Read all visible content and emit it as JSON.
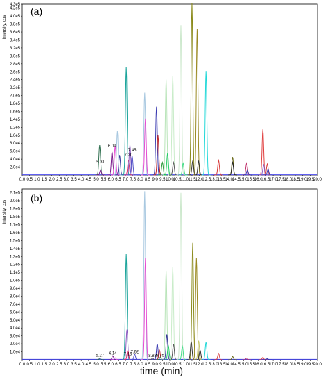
{
  "chart_data": [
    {
      "type": "line",
      "panel_label": "(a)",
      "ylabel": "Intensity, cps",
      "xlim": [
        0.0,
        20.0
      ],
      "ylim": [
        0,
        430000
      ],
      "x_ticks": [
        "0.0",
        "0.5",
        "1.0",
        "1.5",
        "2.0",
        "2.5",
        "3.0",
        "3.5",
        "4.0",
        "4.5",
        "5.0",
        "5.5",
        "6.0",
        "6.5",
        "7.0",
        "7.5",
        "8.0",
        "8.5",
        "9.0",
        "9.5",
        "10.0",
        "10.5",
        "11.0",
        "11.5",
        "12.0",
        "12.5",
        "13.0",
        "13.5",
        "14.0",
        "14.5",
        "15.0",
        "15.5",
        "16.0",
        "16.5",
        "17.0",
        "17.5",
        "18.0",
        "18.5",
        "19.0",
        "19.5",
        "20.0"
      ],
      "y_ticks": [
        "2.0e4",
        "4.0e4",
        "6.0e4",
        "8.0e4",
        "1.0e5",
        "1.2e5",
        "1.4e5",
        "1.6e5",
        "1.8e5",
        "2.0e5",
        "2.2e5",
        "2.4e5",
        "2.6e5",
        "2.8e5",
        "3.0e5",
        "3.2e5",
        "3.4e5",
        "3.6e5",
        "3.8e5",
        "4.0e5",
        "4.2e5",
        "4.3e5"
      ],
      "y_tick_values": [
        20000,
        40000,
        60000,
        80000,
        100000,
        120000,
        140000,
        160000,
        180000,
        200000,
        220000,
        240000,
        260000,
        280000,
        300000,
        320000,
        340000,
        360000,
        380000,
        400000,
        420000,
        430000
      ],
      "peak_labels": [
        {
          "text": "5.31",
          "x": 5.31,
          "y": 30000
        },
        {
          "text": "6.09",
          "x": 6.09,
          "y": 70000
        },
        {
          "text": "7.20",
          "x": 7.2,
          "y": 47000
        },
        {
          "text": "7.45",
          "x": 7.45,
          "y": 59000
        }
      ],
      "peaks": [
        {
          "x": 5.25,
          "height": 75000,
          "color": "#2f6f4f"
        },
        {
          "x": 5.31,
          "height": 12000,
          "color": "#7a1a8c"
        },
        {
          "x": 6.09,
          "height": 58000,
          "color": "#7a1a8c"
        },
        {
          "x": 6.3,
          "height": 73000,
          "color": "#e64bd2"
        },
        {
          "x": 6.45,
          "height": 110000,
          "color": "#a8c8e0"
        },
        {
          "x": 6.6,
          "height": 50000,
          "color": "#3a3a9a"
        },
        {
          "x": 7.05,
          "height": 272000,
          "color": "#1aa39a"
        },
        {
          "x": 7.2,
          "height": 38000,
          "color": "#e0306a"
        },
        {
          "x": 7.3,
          "height": 75000,
          "color": "#8a5ac0"
        },
        {
          "x": 7.45,
          "height": 48000,
          "color": "#5050c8"
        },
        {
          "x": 8.3,
          "height": 207000,
          "color": "#a8c8e0"
        },
        {
          "x": 8.35,
          "height": 142000,
          "color": "#e64bd2"
        },
        {
          "x": 9.1,
          "height": 172000,
          "color": "#3a3ab0"
        },
        {
          "x": 9.2,
          "height": 100000,
          "color": "#c02828"
        },
        {
          "x": 9.5,
          "height": 32000,
          "color": "#2a9a3a"
        },
        {
          "x": 9.75,
          "height": 240000,
          "color": "#b8e4b8"
        },
        {
          "x": 9.85,
          "height": 55000,
          "color": "#22cc66"
        },
        {
          "x": 10.2,
          "height": 250000,
          "color": "#c8ecc8"
        },
        {
          "x": 10.25,
          "height": 32000,
          "color": "#555555"
        },
        {
          "x": 10.75,
          "height": 377000,
          "color": "#cce8cc"
        },
        {
          "x": 10.9,
          "height": 30000,
          "color": "#44dd88"
        },
        {
          "x": 11.5,
          "height": 432000,
          "color": "#8a8a1a"
        },
        {
          "x": 11.55,
          "height": 35000,
          "color": "#333333"
        },
        {
          "x": 11.85,
          "height": 367000,
          "color": "#9a8a22"
        },
        {
          "x": 11.95,
          "height": 35000,
          "color": "#333333"
        },
        {
          "x": 12.45,
          "height": 262000,
          "color": "#22d8d8"
        },
        {
          "x": 13.3,
          "height": 37000,
          "color": "#d83a3a"
        },
        {
          "x": 14.25,
          "height": 45000,
          "color": "#6a6a1a"
        },
        {
          "x": 14.25,
          "height": 32000,
          "color": "#222222"
        },
        {
          "x": 15.2,
          "height": 30000,
          "color": "#c0306a"
        },
        {
          "x": 15.25,
          "height": 12000,
          "color": "#3a3ab0"
        },
        {
          "x": 16.3,
          "height": 115000,
          "color": "#e04040"
        },
        {
          "x": 16.35,
          "height": 26000,
          "color": "#8a5ac0"
        },
        {
          "x": 16.6,
          "height": 28000,
          "color": "#d83a3a"
        },
        {
          "x": 16.65,
          "height": 14000,
          "color": "#3a3ab0"
        }
      ]
    },
    {
      "type": "line",
      "panel_label": "(b)",
      "ylabel": "Intensity, cps",
      "xlim": [
        0.0,
        20.0
      ],
      "ylim": [
        0,
        215000
      ],
      "x_ticks": [
        "0.0",
        "0.5",
        "1.0",
        "1.5",
        "2.0",
        "2.5",
        "3.0",
        "3.5",
        "4.0",
        "4.5",
        "5.0",
        "5.5",
        "6.0",
        "6.5",
        "7.0",
        "7.5",
        "8.0",
        "8.5",
        "9.0",
        "9.5",
        "10.0",
        "10.5",
        "11.0",
        "11.5",
        "12.0",
        "12.5",
        "13.0",
        "13.5",
        "14.0",
        "14.5",
        "15.0",
        "15.5",
        "16.0",
        "16.5",
        "17.0",
        "17.5",
        "18.0",
        "18.5",
        "19.0",
        "19.5",
        "20.0"
      ],
      "y_ticks": [
        "1.0e4",
        "2.0e4",
        "3.0e4",
        "4.0e4",
        "5.0e4",
        "6.0e4",
        "7.0e4",
        "8.0e4",
        "9.0e4",
        "1.0e5",
        "1.1e5",
        "1.2e5",
        "1.3e5",
        "1.4e5",
        "1.5e5",
        "1.6e5",
        "1.7e5",
        "1.8e5",
        "1.9e5",
        "2.0e5",
        "2.1e5"
      ],
      "y_tick_values": [
        10000,
        20000,
        30000,
        40000,
        50000,
        60000,
        70000,
        80000,
        90000,
        100000,
        110000,
        120000,
        130000,
        140000,
        150000,
        160000,
        170000,
        180000,
        190000,
        200000,
        210000
      ],
      "peak_labels": [
        {
          "text": "5.27",
          "x": 5.27,
          "y": 4000
        },
        {
          "text": "6.14",
          "x": 6.14,
          "y": 6500
        },
        {
          "text": "7.16",
          "x": 7.16,
          "y": 5500
        },
        {
          "text": "7.62",
          "x": 7.62,
          "y": 8500
        },
        {
          "text": "8.83",
          "x": 8.83,
          "y": 3500
        },
        {
          "text": "9.35",
          "x": 9.35,
          "y": 4000
        }
      ],
      "peaks": [
        {
          "x": 5.27,
          "height": 2000,
          "color": "#2f6f4f"
        },
        {
          "x": 6.14,
          "height": 5000,
          "color": "#7a1a8c"
        },
        {
          "x": 6.3,
          "height": 2500,
          "color": "#e64bd2"
        },
        {
          "x": 7.05,
          "height": 133000,
          "color": "#1aa39a"
        },
        {
          "x": 7.1,
          "height": 38000,
          "color": "#8a5ac0"
        },
        {
          "x": 7.16,
          "height": 12000,
          "color": "#e0306a"
        },
        {
          "x": 7.62,
          "height": 7000,
          "color": "#5050c8"
        },
        {
          "x": 8.3,
          "height": 212000,
          "color": "#a8c8e0"
        },
        {
          "x": 8.35,
          "height": 128000,
          "color": "#e64bd2"
        },
        {
          "x": 8.83,
          "height": 2000,
          "color": "#555555"
        },
        {
          "x": 9.15,
          "height": 20000,
          "color": "#3a3ab0"
        },
        {
          "x": 9.3,
          "height": 12000,
          "color": "#c02828"
        },
        {
          "x": 9.35,
          "height": 3000,
          "color": "#2a9a3a"
        },
        {
          "x": 9.75,
          "height": 112000,
          "color": "#b8e4b8"
        },
        {
          "x": 9.8,
          "height": 32000,
          "color": "#3a3a9a"
        },
        {
          "x": 9.9,
          "height": 18000,
          "color": "#22cc66"
        },
        {
          "x": 10.2,
          "height": 117000,
          "color": "#c8ecc8"
        },
        {
          "x": 10.25,
          "height": 20000,
          "color": "#555555"
        },
        {
          "x": 10.75,
          "height": 210000,
          "color": "#cce8cc"
        },
        {
          "x": 10.85,
          "height": 17000,
          "color": "#44dd88"
        },
        {
          "x": 11.45,
          "height": 23000,
          "color": "#333333"
        },
        {
          "x": 11.55,
          "height": 147000,
          "color": "#8a8a1a"
        },
        {
          "x": 11.8,
          "height": 128000,
          "color": "#9a8a22"
        },
        {
          "x": 11.95,
          "height": 24000,
          "color": "#c8c86a"
        },
        {
          "x": 12.05,
          "height": 12000,
          "color": "#333333"
        },
        {
          "x": 12.45,
          "height": 22000,
          "color": "#22d8d8"
        },
        {
          "x": 13.3,
          "height": 8000,
          "color": "#d83a3a"
        },
        {
          "x": 14.25,
          "height": 4000,
          "color": "#6a6a1a"
        },
        {
          "x": 15.2,
          "height": 2000,
          "color": "#c0306a"
        },
        {
          "x": 16.3,
          "height": 3000,
          "color": "#e04040"
        },
        {
          "x": 16.6,
          "height": 1500,
          "color": "#3a3ab0"
        }
      ]
    }
  ],
  "x_axis_title": "time (min)"
}
